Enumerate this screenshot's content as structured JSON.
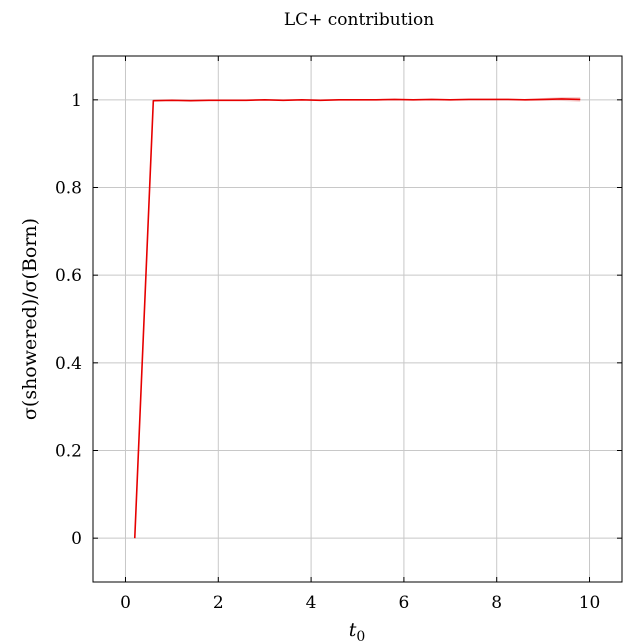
{
  "chart_data": {
    "type": "line",
    "title": "LC+ contribution",
    "xlabel": "t",
    "xlabel_sub": "0",
    "ylabel": "σ(showered)/σ(Born)",
    "xlim": [
      -0.7,
      10.7
    ],
    "ylim": [
      -0.1,
      1.1
    ],
    "xticks": [
      0,
      2,
      4,
      6,
      8,
      10
    ],
    "yticks": [
      0,
      0.2,
      0.4,
      0.6,
      0.8,
      1
    ],
    "grid": true,
    "line_color": "#e60000",
    "band_color": "#f4b6b6",
    "series": [
      {
        "x": [
          0.2,
          0.6,
          1.0,
          1.4,
          1.8,
          2.2,
          2.6,
          3.0,
          3.4,
          3.8,
          4.2,
          4.6,
          5.0,
          5.4,
          5.8,
          6.2,
          6.6,
          7.0,
          7.4,
          7.8,
          8.2,
          8.6,
          9.0,
          9.4,
          9.8
        ],
        "y": [
          0.0,
          0.998,
          0.999,
          0.998,
          0.999,
          0.999,
          0.999,
          1.0,
          0.999,
          1.0,
          0.999,
          1.0,
          1.0,
          1.0,
          1.001,
          1.0,
          1.001,
          1.0,
          1.001,
          1.001,
          1.001,
          1.0,
          1.001,
          1.002,
          1.001
        ]
      }
    ]
  }
}
